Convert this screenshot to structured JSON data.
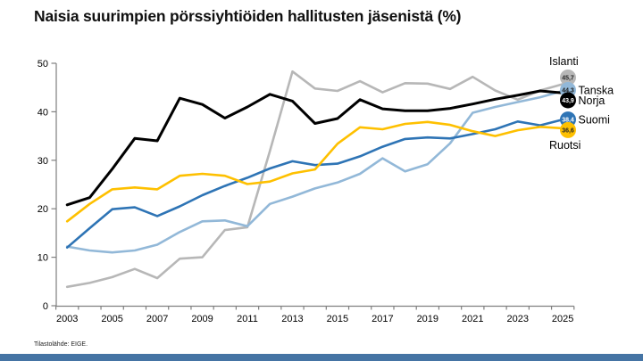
{
  "title": "Naisia suurimpien pörssiyhtiöiden hallitusten jäsenistä (%)",
  "source_note": "Tilastolähde: EIGE.",
  "colors": {
    "axis": "#7f7f7f",
    "text": "#000000",
    "footer_bar": "#4574a4"
  },
  "chart_data": {
    "type": "line",
    "title": "Naisia suurimpien pörssiyhtiöiden hallitusten jäsenistä (%)",
    "xlabel": "",
    "ylabel": "",
    "ylim": [
      0,
      50
    ],
    "y_ticks": [
      0,
      10,
      20,
      30,
      40,
      50
    ],
    "x": [
      2003,
      2004,
      2005,
      2006,
      2007,
      2008,
      2009,
      2010,
      2011,
      2012,
      2013,
      2014,
      2015,
      2016,
      2017,
      2018,
      2019,
      2020,
      2021,
      2022,
      2023,
      2024,
      2025
    ],
    "x_tick_labels": [
      "2003",
      "2005",
      "2007",
      "2009",
      "2011",
      "2013",
      "2015",
      "2017",
      "2019",
      "2021",
      "2023",
      "2025"
    ],
    "grid": false,
    "legend_position": "end-of-line-labels-right",
    "series": [
      {
        "name": "Islanti",
        "color": "#b7b7b7",
        "end_label": "45,7",
        "end_value_text_color": "#262626",
        "label_pos": "above",
        "circle_dy": -7.4,
        "values": [
          3.9,
          4.7,
          5.9,
          7.6,
          5.7,
          9.7,
          10.0,
          15.6,
          16.2,
          31.9,
          48.3,
          44.8,
          44.3,
          46.3,
          44.0,
          45.9,
          45.8,
          44.7,
          47.2,
          44.4,
          42.5,
          44.4,
          45.7
        ]
      },
      {
        "name": "Tanska",
        "color": "#92b8d8",
        "end_label": "44,3",
        "end_value_text_color": "#1a1a1a",
        "label_pos": "right",
        "circle_dy": -1,
        "values": [
          12.2,
          11.4,
          11.0,
          11.4,
          12.6,
          15.2,
          17.4,
          17.6,
          16.4,
          21.0,
          22.5,
          24.2,
          25.4,
          27.2,
          30.4,
          27.7,
          29.2,
          33.5,
          39.8,
          41.0,
          42.0,
          43.0,
          44.3
        ]
      },
      {
        "name": "Norja",
        "color": "#000000",
        "end_label": "43,9",
        "end_value_text_color": "#ffffff",
        "label_pos": "right",
        "circle_dy": 8.3,
        "values": [
          20.8,
          22.3,
          28.2,
          34.5,
          34.0,
          42.8,
          41.5,
          38.7,
          41.0,
          43.6,
          42.2,
          37.6,
          38.6,
          42.5,
          40.6,
          40.2,
          40.2,
          40.7,
          41.6,
          42.6,
          43.4,
          44.3,
          43.9
        ]
      },
      {
        "name": "Suomi",
        "color": "#2e74b5",
        "end_label": "38,4",
        "end_value_text_color": "#ffffff",
        "label_pos": "right",
        "circle_dy": 0,
        "values": [
          12.0,
          16.0,
          19.9,
          20.3,
          18.5,
          20.5,
          22.8,
          24.7,
          26.4,
          28.3,
          29.8,
          29.0,
          29.3,
          30.8,
          32.8,
          34.4,
          34.7,
          34.5,
          35.4,
          36.4,
          38.0,
          37.2,
          38.4
        ]
      },
      {
        "name": "Ruotsi",
        "color": "#fec000",
        "end_label": "36,6",
        "end_value_text_color": "#262626",
        "label_pos": "below",
        "circle_dy": 2,
        "values": [
          17.4,
          21.0,
          24.0,
          24.4,
          24.0,
          26.8,
          27.2,
          26.8,
          25.1,
          25.6,
          27.3,
          28.1,
          33.4,
          36.8,
          36.4,
          37.5,
          37.9,
          37.3,
          36.0,
          35.0,
          36.2,
          36.9,
          36.6
        ]
      }
    ]
  }
}
